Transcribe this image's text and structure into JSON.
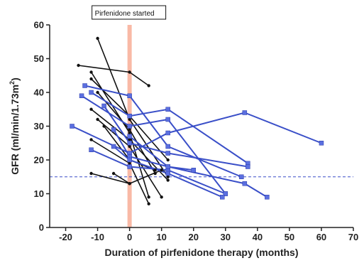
{
  "chart_data": {
    "type": "line",
    "xlabel": "Duration of pirfenidone therapy (months)",
    "ylabel_main": "GFR (ml/min/1.73m",
    "ylabel_sup": "2",
    "ylabel_close": ")",
    "xlim": [
      -25,
      70
    ],
    "ylim": [
      0,
      60
    ],
    "xticks": [
      -20,
      -10,
      0,
      10,
      20,
      30,
      40,
      50,
      60,
      70
    ],
    "yticks": [
      0,
      10,
      20,
      30,
      40,
      50,
      60
    ],
    "annotation": "Pirfenidone started",
    "start_marker_x": 0,
    "reference_y": 15,
    "colors": {
      "pre_treatment": "#111111",
      "on_treatment": "#3a4fc8",
      "marker": "#5b6fe0",
      "start_band": "#f9b9a6",
      "reference_line": "#3a4fc8"
    },
    "pre_series": [
      {
        "points": [
          [
            -16,
            48
          ],
          [
            0,
            46
          ],
          [
            6,
            42
          ]
        ]
      },
      {
        "points": [
          [
            -10,
            56
          ],
          [
            0,
            32
          ],
          [
            12,
            15
          ]
        ]
      },
      {
        "points": [
          [
            -12,
            46
          ],
          [
            0,
            28
          ],
          [
            6,
            9
          ]
        ]
      },
      {
        "points": [
          [
            -12,
            44
          ],
          [
            0,
            33
          ],
          [
            12,
            20
          ]
        ]
      },
      {
        "points": [
          [
            -10,
            40
          ],
          [
            0,
            29
          ],
          [
            8,
            16
          ]
        ]
      },
      {
        "points": [
          [
            -12,
            35
          ],
          [
            0,
            26
          ],
          [
            12,
            14
          ]
        ]
      },
      {
        "points": [
          [
            -10,
            32
          ],
          [
            0,
            24
          ],
          [
            10,
            9
          ]
        ]
      },
      {
        "points": [
          [
            -8,
            30
          ],
          [
            0,
            20
          ],
          [
            8,
            17
          ]
        ]
      },
      {
        "points": [
          [
            -12,
            26
          ],
          [
            0,
            19
          ],
          [
            6,
            7
          ]
        ]
      },
      {
        "points": [
          [
            -12,
            16
          ],
          [
            0,
            13
          ]
        ]
      },
      {
        "points": [
          [
            -5,
            16
          ],
          [
            0,
            13
          ],
          [
            10,
            17
          ]
        ]
      }
    ],
    "post_series": [
      {
        "points": [
          [
            -14,
            42
          ],
          [
            0,
            39
          ],
          [
            12,
            24
          ],
          [
            35,
            15
          ]
        ]
      },
      {
        "points": [
          [
            -12,
            40
          ],
          [
            0,
            33
          ],
          [
            12,
            35
          ],
          [
            37,
            19
          ]
        ]
      },
      {
        "points": [
          [
            -15,
            39
          ],
          [
            0,
            30
          ],
          [
            12,
            32
          ],
          [
            30,
            10
          ]
        ]
      },
      {
        "points": [
          [
            -18,
            30
          ],
          [
            0,
            22
          ],
          [
            12,
            28
          ],
          [
            36,
            34
          ],
          [
            60,
            25
          ]
        ]
      },
      {
        "points": [
          [
            -12,
            23
          ],
          [
            0,
            18
          ],
          [
            12,
            17
          ],
          [
            30,
            10
          ]
        ]
      },
      {
        "points": [
          [
            -8,
            36
          ],
          [
            0,
            25
          ],
          [
            12,
            22
          ],
          [
            37,
            18
          ]
        ]
      },
      {
        "points": [
          [
            -5,
            29
          ],
          [
            0,
            21
          ],
          [
            12,
            18
          ],
          [
            20,
            17
          ]
        ]
      },
      {
        "points": [
          [
            -5,
            24
          ],
          [
            0,
            20
          ],
          [
            12,
            16
          ],
          [
            29,
            9
          ]
        ]
      },
      {
        "points": [
          [
            0,
            27
          ],
          [
            12,
            18
          ],
          [
            36,
            13
          ],
          [
            43,
            9
          ]
        ]
      }
    ]
  }
}
